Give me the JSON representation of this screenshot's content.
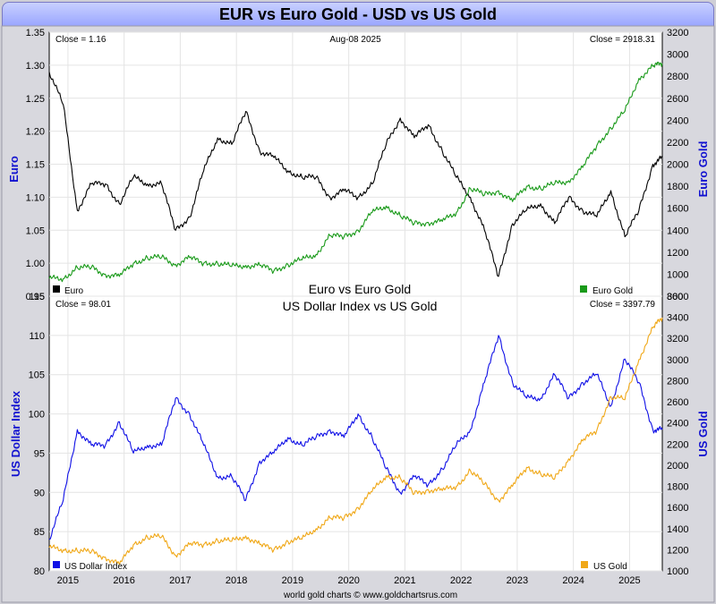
{
  "header": {
    "title": "EUR vs Euro Gold - USD vs US Gold"
  },
  "footer": {
    "credit": "world gold charts © www.goldchartsrus.com"
  },
  "colors": {
    "euro": "#000000",
    "euro_gold": "#1a9a1a",
    "usd_index": "#1010e6",
    "us_gold": "#f0a818",
    "axis_label": "#1010d0"
  },
  "chart_data": [
    {
      "type": "line",
      "title": "Euro vs Euro Gold",
      "date_label": "Aug-08  2025",
      "x_ticks": [
        "2015",
        "2016",
        "2017",
        "2018",
        "2019",
        "2020",
        "2021",
        "2022",
        "2023",
        "2024",
        "2025"
      ],
      "xlim": [
        "2014-09",
        "2025-08"
      ],
      "left_axis": {
        "label": "Euro",
        "ylim": [
          0.95,
          1.35
        ],
        "ticks": [
          "0.95",
          "1.00",
          "1.05",
          "1.10",
          "1.15",
          "1.20",
          "1.25",
          "1.30",
          "1.35"
        ]
      },
      "right_axis": {
        "label": "Euro Gold",
        "ylim": [
          800,
          3200
        ],
        "ticks": [
          "800",
          "1000",
          "1200",
          "1400",
          "1600",
          "1800",
          "2000",
          "2200",
          "2400",
          "2600",
          "2800",
          "3000",
          "3200"
        ]
      },
      "close_left": "Close = 1.16",
      "close_right": "Close = 2918.31",
      "series": [
        {
          "name": "Euro",
          "axis": "left",
          "color": "#000000",
          "x": [
            "2014-09",
            "2014-12",
            "2015-03",
            "2015-06",
            "2015-09",
            "2015-12",
            "2016-03",
            "2016-06",
            "2016-09",
            "2016-12",
            "2017-03",
            "2017-06",
            "2017-09",
            "2017-12",
            "2018-03",
            "2018-06",
            "2018-09",
            "2018-12",
            "2019-03",
            "2019-06",
            "2019-09",
            "2019-12",
            "2020-03",
            "2020-06",
            "2020-09",
            "2020-12",
            "2021-03",
            "2021-06",
            "2021-09",
            "2021-12",
            "2022-03",
            "2022-06",
            "2022-09",
            "2022-12",
            "2023-03",
            "2023-06",
            "2023-09",
            "2023-12",
            "2024-03",
            "2024-06",
            "2024-09",
            "2024-12",
            "2025-03",
            "2025-06",
            "2025-08"
          ],
          "y": [
            1.29,
            1.24,
            1.08,
            1.12,
            1.12,
            1.09,
            1.13,
            1.12,
            1.12,
            1.05,
            1.07,
            1.14,
            1.19,
            1.18,
            1.23,
            1.17,
            1.16,
            1.14,
            1.13,
            1.13,
            1.1,
            1.11,
            1.1,
            1.12,
            1.18,
            1.22,
            1.19,
            1.21,
            1.17,
            1.13,
            1.1,
            1.05,
            0.98,
            1.06,
            1.08,
            1.09,
            1.06,
            1.1,
            1.08,
            1.07,
            1.11,
            1.04,
            1.08,
            1.15,
            1.16
          ]
        },
        {
          "name": "Euro Gold",
          "axis": "right",
          "color": "#1a9a1a",
          "x": [
            "2014-09",
            "2014-12",
            "2015-03",
            "2015-06",
            "2015-09",
            "2015-12",
            "2016-03",
            "2016-06",
            "2016-09",
            "2016-12",
            "2017-03",
            "2017-06",
            "2017-09",
            "2017-12",
            "2018-03",
            "2018-06",
            "2018-09",
            "2018-12",
            "2019-03",
            "2019-06",
            "2019-09",
            "2019-12",
            "2020-03",
            "2020-06",
            "2020-09",
            "2020-12",
            "2021-03",
            "2021-06",
            "2021-09",
            "2021-12",
            "2022-03",
            "2022-06",
            "2022-09",
            "2022-12",
            "2023-03",
            "2023-06",
            "2023-09",
            "2023-12",
            "2024-03",
            "2024-06",
            "2024-09",
            "2024-12",
            "2025-03",
            "2025-06",
            "2025-08"
          ],
          "y": [
            960,
            960,
            1060,
            1060,
            1000,
            980,
            1100,
            1150,
            1150,
            1090,
            1150,
            1100,
            1100,
            1070,
            1080,
            1080,
            1030,
            1090,
            1130,
            1180,
            1350,
            1340,
            1400,
            1560,
            1620,
            1530,
            1460,
            1470,
            1480,
            1560,
            1780,
            1720,
            1760,
            1660,
            1800,
            1780,
            1820,
            1850,
            1970,
            2170,
            2330,
            2480,
            2780,
            2890,
            2918
          ]
        }
      ]
    },
    {
      "type": "line",
      "title": "US Dollar Index vs US Gold",
      "x_ticks": [
        "2015",
        "2016",
        "2017",
        "2018",
        "2019",
        "2020",
        "2021",
        "2022",
        "2023",
        "2024",
        "2025"
      ],
      "xlim": [
        "2014-09",
        "2025-08"
      ],
      "left_axis": {
        "label": "US Dollar Index",
        "ylim": [
          80,
          115
        ],
        "ticks": [
          "80",
          "85",
          "90",
          "95",
          "100",
          "105",
          "110",
          "115"
        ]
      },
      "right_axis": {
        "label": "US Gold",
        "ylim": [
          1000,
          3600
        ],
        "ticks": [
          "1000",
          "1200",
          "1400",
          "1600",
          "1800",
          "2000",
          "2200",
          "2400",
          "2600",
          "2800",
          "3000",
          "3200",
          "3400",
          "3600"
        ]
      },
      "close_left": "Close = 98.01",
      "close_right": "Close = 3397.79",
      "series": [
        {
          "name": "US Dollar Index",
          "axis": "left",
          "color": "#1010e6",
          "x": [
            "2014-09",
            "2014-12",
            "2015-03",
            "2015-06",
            "2015-09",
            "2015-12",
            "2016-03",
            "2016-06",
            "2016-09",
            "2016-12",
            "2017-03",
            "2017-06",
            "2017-09",
            "2017-12",
            "2018-03",
            "2018-06",
            "2018-09",
            "2018-12",
            "2019-03",
            "2019-06",
            "2019-09",
            "2019-12",
            "2020-03",
            "2020-06",
            "2020-09",
            "2020-12",
            "2021-03",
            "2021-06",
            "2021-09",
            "2021-12",
            "2022-03",
            "2022-06",
            "2022-09",
            "2022-12",
            "2023-03",
            "2023-06",
            "2023-09",
            "2023-12",
            "2024-03",
            "2024-06",
            "2024-09",
            "2024-12",
            "2025-03",
            "2025-06",
            "2025-08"
          ],
          "y": [
            84,
            89,
            98,
            96,
            96,
            99,
            95,
            96,
            96,
            102,
            100,
            96,
            92,
            92,
            89,
            94,
            95,
            97,
            96,
            97,
            98,
            97,
            100,
            97,
            93,
            90,
            92,
            91,
            93,
            96,
            98,
            104,
            110,
            104,
            102,
            102,
            105,
            102,
            104,
            105,
            101,
            107,
            104,
            98,
            98
          ]
        },
        {
          "name": "US Gold",
          "axis": "right",
          "color": "#f0a818",
          "x": [
            "2014-09",
            "2014-12",
            "2015-03",
            "2015-06",
            "2015-09",
            "2015-12",
            "2016-03",
            "2016-06",
            "2016-09",
            "2016-12",
            "2017-03",
            "2017-06",
            "2017-09",
            "2017-12",
            "2018-03",
            "2018-06",
            "2018-09",
            "2018-12",
            "2019-03",
            "2019-06",
            "2019-09",
            "2019-12",
            "2020-03",
            "2020-06",
            "2020-09",
            "2020-12",
            "2021-03",
            "2021-06",
            "2021-09",
            "2021-12",
            "2022-03",
            "2022-06",
            "2022-09",
            "2022-12",
            "2023-03",
            "2023-06",
            "2023-09",
            "2023-12",
            "2024-03",
            "2024-06",
            "2024-09",
            "2024-12",
            "2025-03",
            "2025-06",
            "2025-08"
          ],
          "y": [
            1220,
            1200,
            1190,
            1180,
            1130,
            1060,
            1250,
            1320,
            1320,
            1150,
            1250,
            1250,
            1290,
            1280,
            1330,
            1250,
            1200,
            1280,
            1300,
            1400,
            1500,
            1500,
            1600,
            1750,
            1900,
            1880,
            1730,
            1770,
            1760,
            1800,
            1950,
            1820,
            1670,
            1800,
            1980,
            1920,
            1870,
            2060,
            2230,
            2330,
            2650,
            2620,
            3000,
            3300,
            3398
          ]
        }
      ]
    }
  ]
}
